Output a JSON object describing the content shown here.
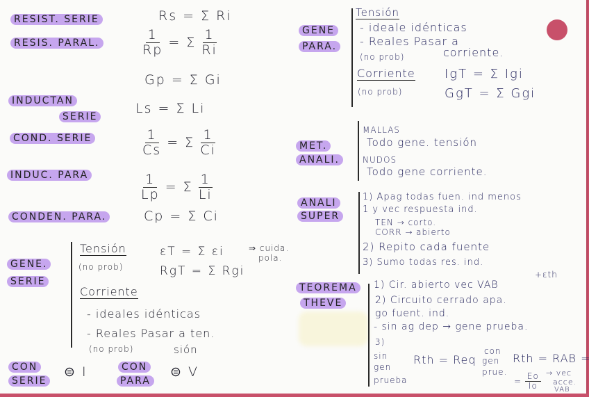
{
  "colors": {
    "highlight": "#c6a6ee",
    "card_edge": "#c8506a",
    "ink_left": "#1e1e2a",
    "ink_right": "#26265e"
  },
  "left": {
    "resist_serie": {
      "label": "RESIST. SERIE",
      "formula": "Rs = Σ Ri"
    },
    "resis_paral": {
      "label": "RESIS. PARAL.",
      "lhs_num": "1",
      "lhs_den": "Rp",
      "eq": "= Σ",
      "rhs_num": "1",
      "rhs_den": "Ri",
      "formula2": "Gp = Σ Gi"
    },
    "inductan_serie": {
      "label1": "INDUCTAN",
      "label2": "SERIE",
      "formula": "Ls = Σ Li"
    },
    "cond_serie": {
      "label": "COND. SERIE",
      "lhs_num": "1",
      "lhs_den": "Cs",
      "eq": "= Σ",
      "rhs_num": "1",
      "rhs_den": "Ci"
    },
    "induc_para": {
      "label": "INDUC. PARA",
      "lhs_num": "1",
      "lhs_den": "Lp",
      "eq": "= Σ",
      "rhs_num": "1",
      "rhs_den": "Li"
    },
    "conden_para": {
      "label": "CONDEN. PARA.",
      "formula": "Cp = Σ Ci"
    },
    "gene_serie": {
      "label1": "GENE.",
      "label2": "SERIE",
      "tension": "Tensión",
      "no_prob1": "(no prob)",
      "f1": "εT = Σ εi",
      "note1": "⇒ cuida.",
      "note2": "pola.",
      "f2": "RgT = Σ Rgi",
      "corriente": "Corriente",
      "l1": "- ideales idénticas",
      "l2": "- Reales Pasar a ten.",
      "no_prob2": "(no prob)",
      "l3": "sión"
    },
    "con_serie": {
      "label1": "CON",
      "label2": "SERIE",
      "value": "⊜ I"
    },
    "con_para": {
      "label1": "CON",
      "label2": "PARA",
      "value": "⊜ V"
    }
  },
  "right": {
    "gene_para": {
      "label1": "GENE",
      "label2": "PARA.",
      "tension": "Tensión",
      "l1": "- ideale idénticas",
      "l2": "- Reales Pasar a",
      "no_prob1": "(no prob)",
      "l3": "corriente.",
      "corriente": "Corriente",
      "f1": "IgT = Σ Igi",
      "no_prob2": "(no prob)",
      "f2": "GgT = Σ Ggi"
    },
    "met_anali": {
      "label1": "MET.",
      "label2": "ANALI.",
      "l1": "MALLAS",
      "l2": "Todo gene. tensión",
      "l3": "NUDOS",
      "l4": "Todo gene corriente."
    },
    "anali_super": {
      "label1": "ANALI",
      "label2": "SUPER",
      "l1": "1) Apag todas fuen. ind menos",
      "l2": "1 y vec respuesta ind.",
      "l3": "TEN → corto.",
      "l4": "CORR → abierto",
      "l5": "2) Repito cada fuente",
      "l6": "3) Sumo todas res. ind."
    },
    "teorema_theve": {
      "label1": "TEOREMA",
      "label2": "THEVE",
      "note": "+εth",
      "l1": "1) Cir. abierto vec VAB",
      "l2": "2) Circuito cerrado apa.",
      "l3": "go fuent. ind.",
      "l4": "- sin ag dep → gene prueba.",
      "l5": "3)",
      "sin1": "sin",
      "sin2": "gen",
      "sin3": "prueba",
      "f1": "Rth = Req",
      "con1": "con",
      "con2": "gen",
      "con3": "prue.",
      "f2": "Rth = RAB =",
      "eq": "=",
      "num": "Eo",
      "den": "Io",
      "arrow": "→ vec",
      "acce": "acce.",
      "vab": "VAB"
    }
  }
}
